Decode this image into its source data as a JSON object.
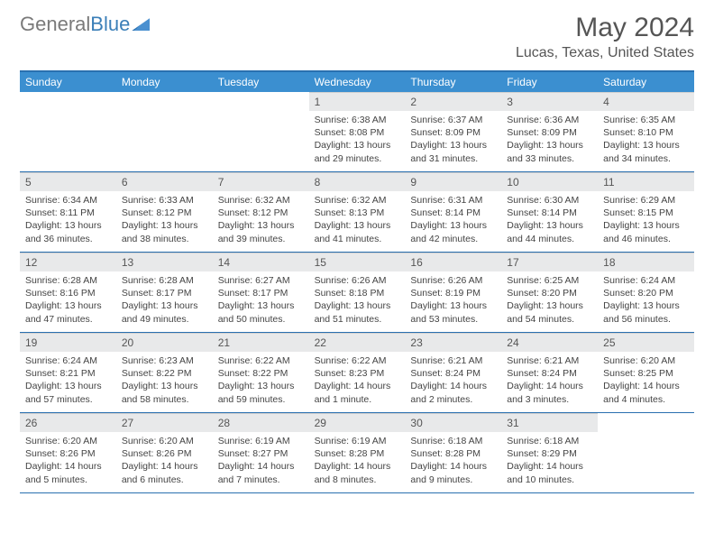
{
  "brand": {
    "part1": "General",
    "part2": "Blue"
  },
  "title": "May 2024",
  "location": "Lucas, Texas, United States",
  "colors": {
    "header_bg": "#3b8fd0",
    "border": "#2970b0",
    "daynum_bg": "#e8e9ea",
    "text": "#444444",
    "title": "#555555"
  },
  "day_names": [
    "Sunday",
    "Monday",
    "Tuesday",
    "Wednesday",
    "Thursday",
    "Friday",
    "Saturday"
  ],
  "weeks": [
    [
      {
        "n": "",
        "sr": "",
        "ss": "",
        "dl": "",
        "empty": true
      },
      {
        "n": "",
        "sr": "",
        "ss": "",
        "dl": "",
        "empty": true
      },
      {
        "n": "",
        "sr": "",
        "ss": "",
        "dl": "",
        "empty": true
      },
      {
        "n": "1",
        "sr": "Sunrise: 6:38 AM",
        "ss": "Sunset: 8:08 PM",
        "dl": "Daylight: 13 hours and 29 minutes."
      },
      {
        "n": "2",
        "sr": "Sunrise: 6:37 AM",
        "ss": "Sunset: 8:09 PM",
        "dl": "Daylight: 13 hours and 31 minutes."
      },
      {
        "n": "3",
        "sr": "Sunrise: 6:36 AM",
        "ss": "Sunset: 8:09 PM",
        "dl": "Daylight: 13 hours and 33 minutes."
      },
      {
        "n": "4",
        "sr": "Sunrise: 6:35 AM",
        "ss": "Sunset: 8:10 PM",
        "dl": "Daylight: 13 hours and 34 minutes."
      }
    ],
    [
      {
        "n": "5",
        "sr": "Sunrise: 6:34 AM",
        "ss": "Sunset: 8:11 PM",
        "dl": "Daylight: 13 hours and 36 minutes."
      },
      {
        "n": "6",
        "sr": "Sunrise: 6:33 AM",
        "ss": "Sunset: 8:12 PM",
        "dl": "Daylight: 13 hours and 38 minutes."
      },
      {
        "n": "7",
        "sr": "Sunrise: 6:32 AM",
        "ss": "Sunset: 8:12 PM",
        "dl": "Daylight: 13 hours and 39 minutes."
      },
      {
        "n": "8",
        "sr": "Sunrise: 6:32 AM",
        "ss": "Sunset: 8:13 PM",
        "dl": "Daylight: 13 hours and 41 minutes."
      },
      {
        "n": "9",
        "sr": "Sunrise: 6:31 AM",
        "ss": "Sunset: 8:14 PM",
        "dl": "Daylight: 13 hours and 42 minutes."
      },
      {
        "n": "10",
        "sr": "Sunrise: 6:30 AM",
        "ss": "Sunset: 8:14 PM",
        "dl": "Daylight: 13 hours and 44 minutes."
      },
      {
        "n": "11",
        "sr": "Sunrise: 6:29 AM",
        "ss": "Sunset: 8:15 PM",
        "dl": "Daylight: 13 hours and 46 minutes."
      }
    ],
    [
      {
        "n": "12",
        "sr": "Sunrise: 6:28 AM",
        "ss": "Sunset: 8:16 PM",
        "dl": "Daylight: 13 hours and 47 minutes."
      },
      {
        "n": "13",
        "sr": "Sunrise: 6:28 AM",
        "ss": "Sunset: 8:17 PM",
        "dl": "Daylight: 13 hours and 49 minutes."
      },
      {
        "n": "14",
        "sr": "Sunrise: 6:27 AM",
        "ss": "Sunset: 8:17 PM",
        "dl": "Daylight: 13 hours and 50 minutes."
      },
      {
        "n": "15",
        "sr": "Sunrise: 6:26 AM",
        "ss": "Sunset: 8:18 PM",
        "dl": "Daylight: 13 hours and 51 minutes."
      },
      {
        "n": "16",
        "sr": "Sunrise: 6:26 AM",
        "ss": "Sunset: 8:19 PM",
        "dl": "Daylight: 13 hours and 53 minutes."
      },
      {
        "n": "17",
        "sr": "Sunrise: 6:25 AM",
        "ss": "Sunset: 8:20 PM",
        "dl": "Daylight: 13 hours and 54 minutes."
      },
      {
        "n": "18",
        "sr": "Sunrise: 6:24 AM",
        "ss": "Sunset: 8:20 PM",
        "dl": "Daylight: 13 hours and 56 minutes."
      }
    ],
    [
      {
        "n": "19",
        "sr": "Sunrise: 6:24 AM",
        "ss": "Sunset: 8:21 PM",
        "dl": "Daylight: 13 hours and 57 minutes."
      },
      {
        "n": "20",
        "sr": "Sunrise: 6:23 AM",
        "ss": "Sunset: 8:22 PM",
        "dl": "Daylight: 13 hours and 58 minutes."
      },
      {
        "n": "21",
        "sr": "Sunrise: 6:22 AM",
        "ss": "Sunset: 8:22 PM",
        "dl": "Daylight: 13 hours and 59 minutes."
      },
      {
        "n": "22",
        "sr": "Sunrise: 6:22 AM",
        "ss": "Sunset: 8:23 PM",
        "dl": "Daylight: 14 hours and 1 minute."
      },
      {
        "n": "23",
        "sr": "Sunrise: 6:21 AM",
        "ss": "Sunset: 8:24 PM",
        "dl": "Daylight: 14 hours and 2 minutes."
      },
      {
        "n": "24",
        "sr": "Sunrise: 6:21 AM",
        "ss": "Sunset: 8:24 PM",
        "dl": "Daylight: 14 hours and 3 minutes."
      },
      {
        "n": "25",
        "sr": "Sunrise: 6:20 AM",
        "ss": "Sunset: 8:25 PM",
        "dl": "Daylight: 14 hours and 4 minutes."
      }
    ],
    [
      {
        "n": "26",
        "sr": "Sunrise: 6:20 AM",
        "ss": "Sunset: 8:26 PM",
        "dl": "Daylight: 14 hours and 5 minutes."
      },
      {
        "n": "27",
        "sr": "Sunrise: 6:20 AM",
        "ss": "Sunset: 8:26 PM",
        "dl": "Daylight: 14 hours and 6 minutes."
      },
      {
        "n": "28",
        "sr": "Sunrise: 6:19 AM",
        "ss": "Sunset: 8:27 PM",
        "dl": "Daylight: 14 hours and 7 minutes."
      },
      {
        "n": "29",
        "sr": "Sunrise: 6:19 AM",
        "ss": "Sunset: 8:28 PM",
        "dl": "Daylight: 14 hours and 8 minutes."
      },
      {
        "n": "30",
        "sr": "Sunrise: 6:18 AM",
        "ss": "Sunset: 8:28 PM",
        "dl": "Daylight: 14 hours and 9 minutes."
      },
      {
        "n": "31",
        "sr": "Sunrise: 6:18 AM",
        "ss": "Sunset: 8:29 PM",
        "dl": "Daylight: 14 hours and 10 minutes."
      },
      {
        "n": "",
        "sr": "",
        "ss": "",
        "dl": "",
        "empty": true
      }
    ]
  ]
}
